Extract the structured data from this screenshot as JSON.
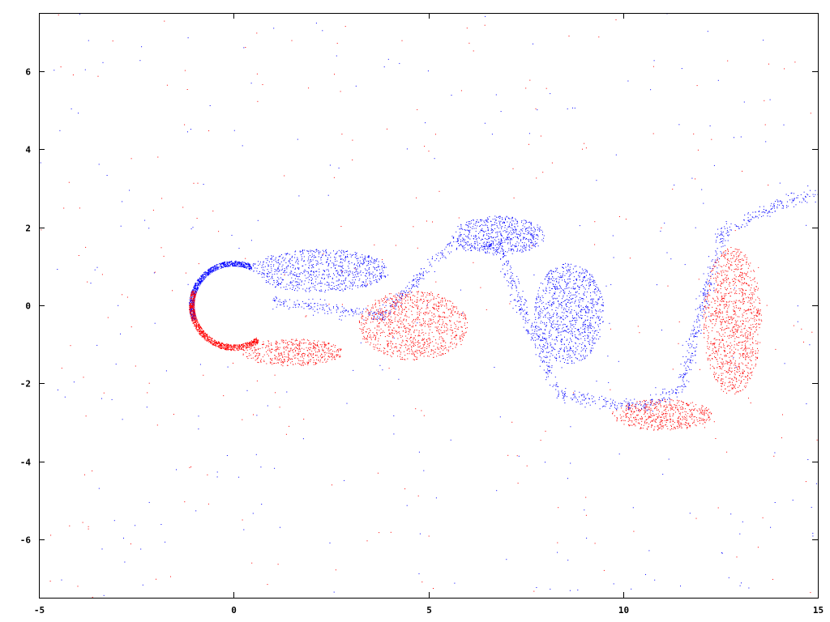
{
  "chart_data": {
    "type": "scatter",
    "title": "",
    "xlabel": "",
    "ylabel": "",
    "xlim": [
      -5,
      15
    ],
    "ylim": [
      -7.5,
      7.5
    ],
    "xticks": [
      -5,
      0,
      5,
      10,
      15
    ],
    "yticks": [
      -6,
      -4,
      -2,
      0,
      2,
      4,
      6
    ],
    "xtick_labels": [
      "-5",
      "0",
      "5",
      "10",
      "15"
    ],
    "ytick_labels": [
      "-6",
      "-4",
      "-2",
      "0",
      "2",
      "4",
      "6"
    ],
    "grid": false,
    "legend": "none",
    "obstacle": {
      "shape": "circle",
      "center": [
        0,
        0
      ],
      "radius": 1
    },
    "series": [
      {
        "color": "#0000ff",
        "regions": [
          {
            "kind": "boundary_layer",
            "theta_deg": [
              65,
              200
            ],
            "thickness": 0.15
          },
          {
            "kind": "blob",
            "cx": 2.2,
            "cy": 0.9,
            "rx": 1.8,
            "ry": 0.55
          },
          {
            "kind": "blob",
            "cx": 6.8,
            "cy": 1.8,
            "rx": 1.2,
            "ry": 0.5
          },
          {
            "kind": "blob",
            "cx": 8.6,
            "cy": -0.2,
            "rx": 0.9,
            "ry": 1.3
          },
          {
            "kind": "curve",
            "points": [
              [
                -0.9,
                0.3
              ],
              [
                1.5,
                0.05
              ],
              [
                3.8,
                -0.25
              ],
              [
                5.6,
                1.6
              ],
              [
                6.8,
                1.55
              ],
              [
                7.6,
                -0.6
              ],
              [
                8.4,
                -2.3
              ],
              [
                10.5,
                -2.6
              ],
              [
                11.5,
                -2.1
              ],
              [
                12.0,
                0.0
              ],
              [
                12.6,
                1.9
              ],
              [
                14.0,
                2.6
              ],
              [
                15.0,
                2.9
              ]
            ]
          }
        ]
      },
      {
        "color": "#ff0000",
        "regions": [
          {
            "kind": "boundary_layer",
            "theta_deg": [
              -200,
              -55
            ],
            "thickness": 0.15
          },
          {
            "kind": "blob",
            "cx": 1.5,
            "cy": -1.2,
            "rx": 1.3,
            "ry": 0.35
          },
          {
            "kind": "blob",
            "cx": 4.6,
            "cy": -0.5,
            "rx": 1.4,
            "ry": 0.9
          },
          {
            "kind": "blob",
            "cx": 12.8,
            "cy": -0.4,
            "rx": 0.75,
            "ry": 1.9
          },
          {
            "kind": "blob",
            "cx": 11.0,
            "cy": -2.8,
            "rx": 1.3,
            "ry": 0.4
          }
        ]
      }
    ]
  }
}
